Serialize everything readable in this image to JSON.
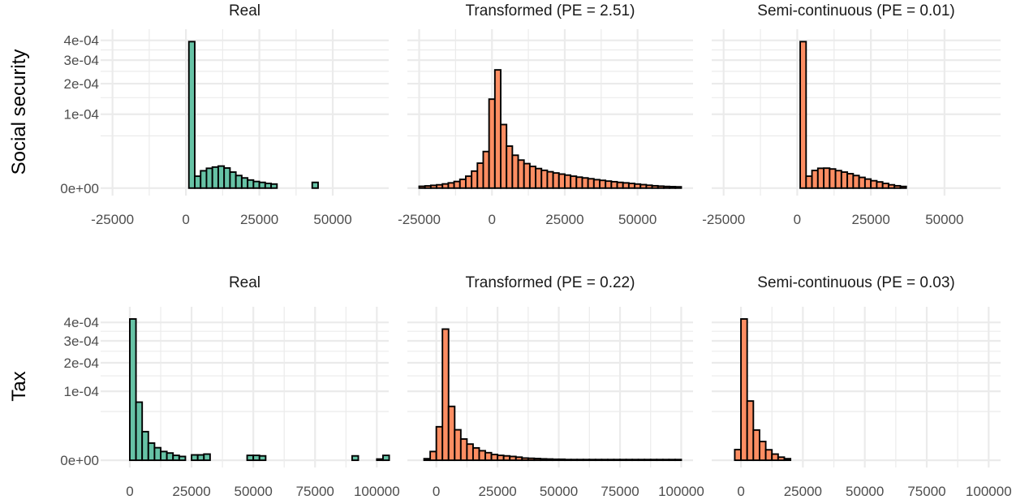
{
  "colors": {
    "real": "#66c2a5",
    "synthetic": "#fc8d62",
    "grid": "#ebebeb",
    "outline": "#000000"
  },
  "chart_data": [
    {
      "type": "histogram",
      "row_label": "Social security",
      "title": "Real",
      "fill": "real",
      "xlim": [
        -25000,
        65000
      ],
      "x_ticks": [
        -25000,
        0,
        25000,
        50000
      ],
      "x_tick_labels": [
        "-25000",
        "0",
        "25000",
        "50000"
      ],
      "y_scale": "sqrt",
      "ylim": [
        0,
        0.00042
      ],
      "y_ticks": [
        0,
        0.0001,
        0.0002,
        0.0003,
        0.0004
      ],
      "y_tick_labels": [
        "0e+00",
        "1e-04",
        "2e-04",
        "3e-04",
        "4e-04"
      ],
      "bins": {
        "start": -25000,
        "width": 2000,
        "counts": [
          0,
          0,
          0,
          0,
          0,
          0,
          0,
          0,
          0,
          0,
          0,
          0,
          0,
          0.000393,
          2.6e-06,
          5.5e-06,
          7.2e-06,
          8.1e-06,
          8.9e-06,
          7.4e-06,
          4.7e-06,
          2.9e-06,
          1.9e-06,
          1.2e-06,
          8e-07,
          6e-07,
          4e-07,
          3e-07,
          0,
          0,
          0,
          0,
          0,
          0,
          6e-07,
          0,
          0,
          0,
          0,
          0,
          0,
          0,
          0,
          0,
          0
        ]
      }
    },
    {
      "type": "histogram",
      "row_label": "Social security",
      "title": "Transformed (PE = 2.51)",
      "fill": "synthetic",
      "xlim": [
        -25000,
        65000
      ],
      "x_ticks": [
        -25000,
        0,
        25000,
        50000
      ],
      "x_tick_labels": [
        "-25000",
        "0",
        "25000",
        "50000"
      ],
      "y_scale": "sqrt",
      "ylim": [
        0,
        0.00042
      ],
      "y_ticks": [
        0,
        0.0001,
        0.0002,
        0.0003,
        0.0004
      ],
      "y_tick_labels": [
        "0e+00",
        "1e-04",
        "2e-04",
        "3e-04",
        "4e-04"
      ],
      "bins": {
        "start": -25000,
        "width": 2000,
        "counts": [
          6e-08,
          9e-08,
          1.4e-07,
          2e-07,
          3.2e-07,
          5e-07,
          8e-07,
          1.4e-06,
          2.6e-06,
          5.3e-06,
          1.14e-05,
          2.45e-05,
          0.000145,
          0.000256,
          7.4e-05,
          3.23e-05,
          1.98e-05,
          1.44e-05,
          1.1e-05,
          8.6e-06,
          7e-06,
          5.8e-06,
          4.9e-06,
          4.2e-06,
          3.6e-06,
          3.1e-06,
          2.6e-06,
          2.2e-06,
          1.9e-06,
          1.6e-06,
          1.3e-06,
          1.1e-06,
          9e-07,
          7.5e-07,
          6e-07,
          5e-07,
          4e-07,
          3e-07,
          2.2e-07,
          1.5e-07,
          1e-07,
          7e-08,
          5e-08,
          4e-08,
          3e-08
        ]
      }
    },
    {
      "type": "histogram",
      "row_label": "Social security",
      "title": "Semi-continuous (PE = 0.01)",
      "fill": "synthetic",
      "xlim": [
        -25000,
        65000
      ],
      "x_ticks": [
        -25000,
        0,
        25000,
        50000
      ],
      "x_tick_labels": [
        "-25000",
        "0",
        "25000",
        "50000"
      ],
      "y_scale": "sqrt",
      "ylim": [
        0,
        0.00042
      ],
      "y_ticks": [
        0,
        0.0001,
        0.0002,
        0.0003,
        0.0004
      ],
      "y_tick_labels": [
        "0e+00",
        "1e-04",
        "2e-04",
        "3e-04",
        "4e-04"
      ],
      "bins": {
        "start": -25000,
        "width": 2000,
        "counts": [
          0,
          0,
          0,
          0,
          0,
          0,
          0,
          0,
          0,
          0,
          0,
          0,
          0,
          0.000393,
          2.6e-06,
          5.7e-06,
          7.2e-06,
          7.3e-06,
          6.7e-06,
          5.6e-06,
          4.7e-06,
          3.8e-06,
          2.9e-06,
          2.1e-06,
          1.5e-06,
          1e-06,
          7e-07,
          4e-07,
          2e-07,
          1e-07,
          5e-08,
          0,
          0,
          0,
          0,
          0,
          0,
          0,
          0,
          0,
          0,
          0,
          0,
          0,
          0
        ]
      }
    },
    {
      "type": "histogram",
      "row_label": "Tax",
      "title": "Real",
      "fill": "real",
      "xlim": [
        -7000,
        100000
      ],
      "x_ticks": [
        0,
        25000,
        50000,
        75000,
        100000
      ],
      "x_tick_labels": [
        "0",
        "25000",
        "50000",
        "75000",
        "100000"
      ],
      "y_scale": "sqrt",
      "ylim": [
        0,
        0.00045
      ],
      "y_ticks": [
        0,
        0.0001,
        0.0002,
        0.0003,
        0.0004
      ],
      "y_tick_labels": [
        "0e+00",
        "1e-04",
        "2e-04",
        "3e-04",
        "4e-04"
      ],
      "bins": {
        "start": -7500,
        "width": 2500,
        "counts": [
          0,
          0,
          0,
          0.00042,
          7.1e-05,
          1.72e-05,
          6.2e-06,
          3.3e-06,
          1.6e-06,
          1.1e-06,
          5e-07,
          3e-07,
          0,
          6e-07,
          6e-07,
          8e-07,
          0,
          0,
          0,
          0,
          0,
          0,
          5e-07,
          5e-07,
          4e-07,
          0,
          0,
          0,
          0,
          0,
          0,
          0,
          0,
          0,
          0,
          0,
          0,
          0,
          0,
          4e-07,
          0,
          0,
          0,
          3e-08,
          5e-07
        ]
      }
    },
    {
      "type": "histogram",
      "row_label": "Tax",
      "title": "Transformed (PE = 0.22)",
      "fill": "synthetic",
      "xlim": [
        -7000,
        100000
      ],
      "x_ticks": [
        0,
        25000,
        50000,
        75000,
        100000
      ],
      "x_tick_labels": [
        "0",
        "25000",
        "50000",
        "75000",
        "100000"
      ],
      "y_scale": "sqrt",
      "ylim": [
        0,
        0.00045
      ],
      "y_ticks": [
        0,
        0.0001,
        0.0002,
        0.0003,
        0.0004
      ],
      "y_tick_labels": [
        "0e+00",
        "1e-04",
        "2e-04",
        "3e-04",
        "4e-04"
      ],
      "bins": {
        "start": -7500,
        "width": 2500,
        "counts": [
          0,
          5e-08,
          1.6e-06,
          2.36e-05,
          0.000362,
          6.1e-05,
          1.95e-05,
          9.5e-06,
          5.5e-06,
          3.2e-06,
          1.9e-06,
          1.2e-06,
          7e-07,
          5e-07,
          4e-07,
          3e-07,
          2e-07,
          1e-07,
          8e-08,
          6e-08,
          4e-08,
          3e-08,
          2e-08,
          2e-08,
          1e-08,
          1e-08,
          1e-08,
          1e-08,
          1e-08,
          1e-08,
          1e-08,
          1e-08,
          1e-08,
          1e-08,
          1e-08,
          1e-08,
          1e-08,
          1e-08,
          1e-08,
          1e-08,
          1e-08,
          1e-08,
          1e-08
        ]
      }
    },
    {
      "type": "histogram",
      "row_label": "Tax",
      "title": "Semi-continuous (PE = 0.03)",
      "fill": "synthetic",
      "xlim": [
        -7000,
        100000
      ],
      "x_ticks": [
        0,
        25000,
        50000,
        75000,
        100000
      ],
      "x_tick_labels": [
        "0",
        "25000",
        "50000",
        "75000",
        "100000"
      ],
      "y_scale": "sqrt",
      "ylim": [
        0,
        0.00045
      ],
      "y_ticks": [
        0,
        0.0001,
        0.0002,
        0.0003,
        0.0004
      ],
      "y_tick_labels": [
        "0e+00",
        "1e-04",
        "2e-04",
        "3e-04",
        "4e-04"
      ],
      "bins": {
        "start": -7500,
        "width": 2500,
        "counts": [
          0,
          0,
          2.4e-06,
          0.00042,
          7.38e-05,
          1.92e-05,
          7.4e-06,
          2.3e-06,
          8e-07,
          2e-07,
          5e-08,
          0,
          0,
          0,
          0,
          0,
          0,
          0,
          0,
          0,
          0,
          0,
          0,
          0,
          0,
          0,
          0,
          0,
          0,
          0,
          0,
          0,
          0,
          0,
          0,
          0,
          0,
          0,
          0,
          0,
          0,
          0,
          0,
          0,
          0
        ]
      }
    }
  ]
}
